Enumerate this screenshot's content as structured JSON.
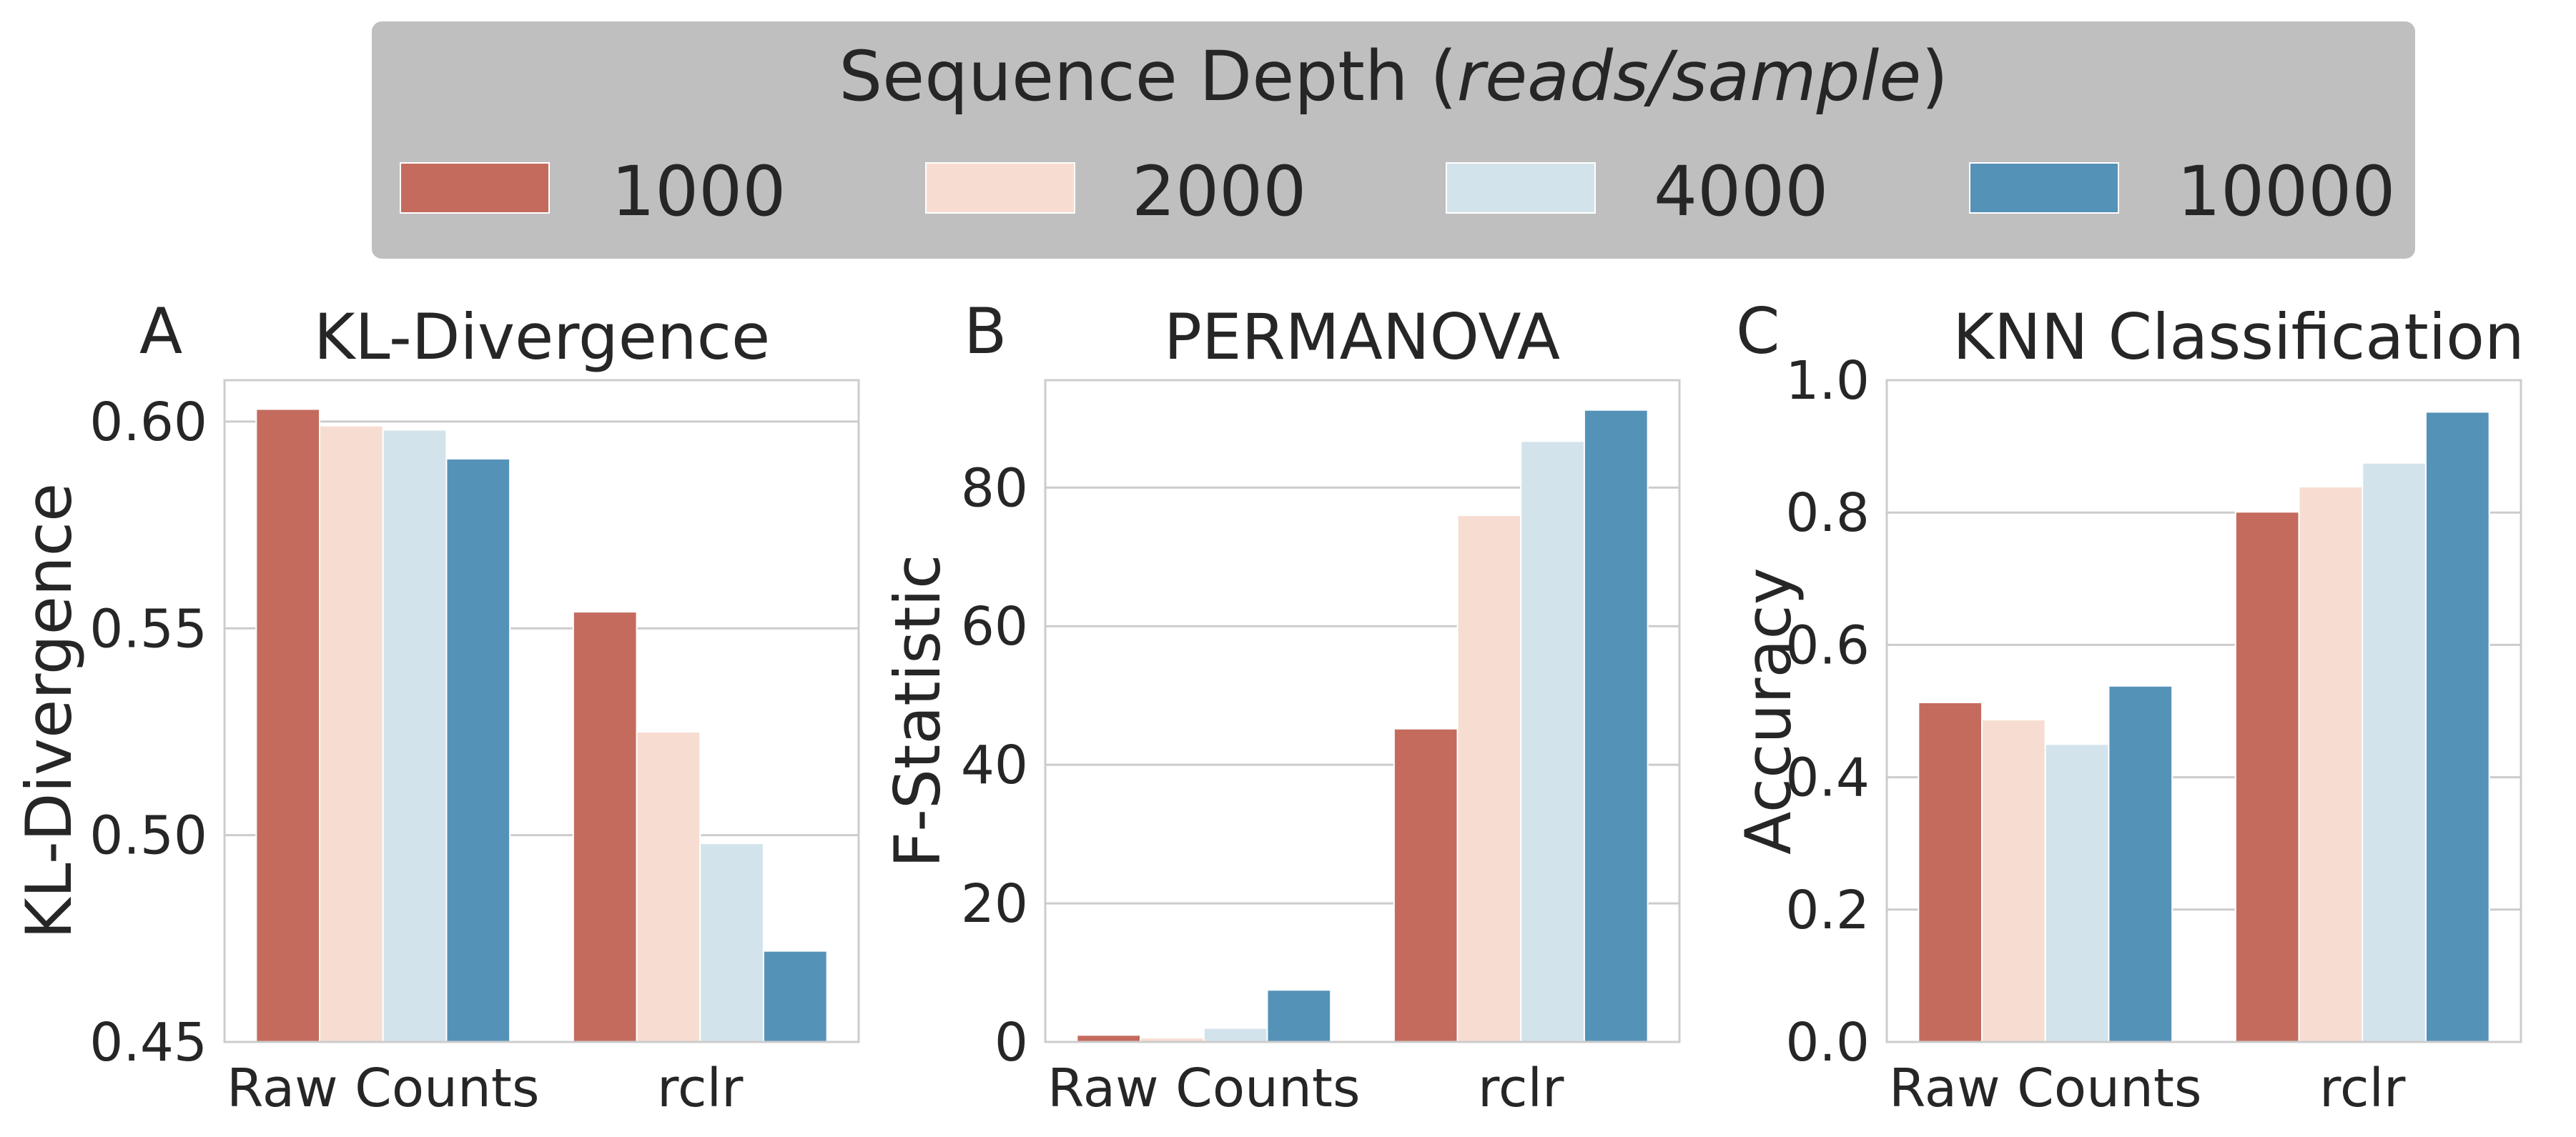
{
  "legend": {
    "title_prefix": "Sequence Depth (",
    "title_italic": "reads/sample",
    "title_suffix": ")",
    "background": "#bfbfbf",
    "items": [
      {
        "label": "1000",
        "color": "#c46b5e"
      },
      {
        "label": "2000",
        "color": "#f7ddd1"
      },
      {
        "label": "4000",
        "color": "#d3e3ec"
      },
      {
        "label": "10000",
        "color": "#5592b8"
      }
    ]
  },
  "chart_data": [
    {
      "type": "bar",
      "panel_letter": "A",
      "title": "KL-Divergence",
      "ylabel": "KL-Divergence",
      "categories": [
        "Raw Counts",
        "rclr"
      ],
      "ylim": [
        0.45,
        0.61
      ],
      "yticks": [
        0.45,
        0.5,
        0.55,
        0.6
      ],
      "ytick_labels": [
        "0.45",
        "0.50",
        "0.55",
        "0.60"
      ],
      "grid": true,
      "series": [
        {
          "name": "1000",
          "values": [
            0.603,
            0.554
          ]
        },
        {
          "name": "2000",
          "values": [
            0.599,
            0.525
          ]
        },
        {
          "name": "4000",
          "values": [
            0.598,
            0.498
          ]
        },
        {
          "name": "10000",
          "values": [
            0.591,
            0.472
          ]
        }
      ]
    },
    {
      "type": "bar",
      "panel_letter": "B",
      "title": "PERMANOVA",
      "ylabel": "F-Statistic",
      "categories": [
        "Raw Counts",
        "rclr"
      ],
      "ylim": [
        0,
        95.5
      ],
      "yticks": [
        0,
        20,
        40,
        60,
        80
      ],
      "ytick_labels": [
        "0",
        "20",
        "40",
        "60",
        "80"
      ],
      "grid": true,
      "series": [
        {
          "name": "1000",
          "values": [
            1.0,
            45.2
          ]
        },
        {
          "name": "2000",
          "values": [
            0.6,
            76.0
          ]
        },
        {
          "name": "4000",
          "values": [
            2.0,
            86.7
          ]
        },
        {
          "name": "10000",
          "values": [
            7.5,
            91.2
          ]
        }
      ]
    },
    {
      "type": "bar",
      "panel_letter": "C",
      "title": "KNN Classification",
      "ylabel": "Accuracy",
      "categories": [
        "Raw Counts",
        "rclr"
      ],
      "ylim": [
        0,
        1.0
      ],
      "yticks": [
        0.0,
        0.2,
        0.4,
        0.6,
        0.8,
        1.0
      ],
      "ytick_labels": [
        "0.0",
        "0.2",
        "0.4",
        "0.6",
        "0.8",
        "1.0"
      ],
      "grid": true,
      "series": [
        {
          "name": "1000",
          "values": [
            0.513,
            0.801
          ]
        },
        {
          "name": "2000",
          "values": [
            0.487,
            0.839
          ]
        },
        {
          "name": "4000",
          "values": [
            0.45,
            0.875
          ]
        },
        {
          "name": "10000",
          "values": [
            0.538,
            0.952
          ]
        }
      ]
    }
  ]
}
